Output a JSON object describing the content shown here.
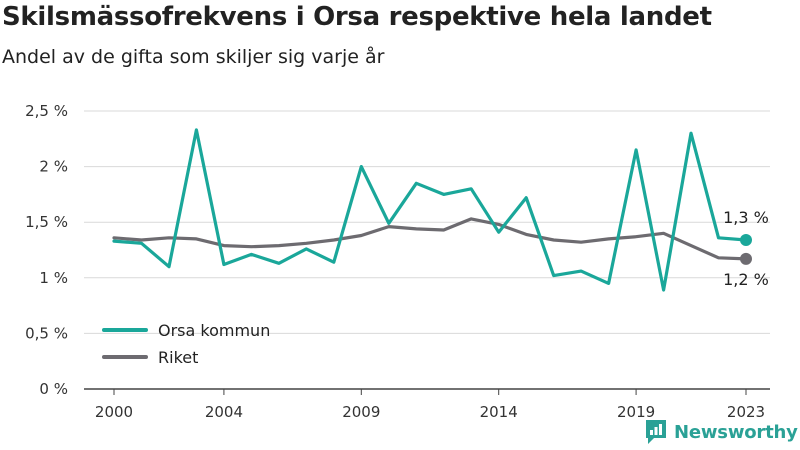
{
  "header": {
    "title": "Skilsmässofrekvens i Orsa respektive hela landet",
    "subtitle": "Andel av de gifta som skiljer sig varje år"
  },
  "colors": {
    "orsa": "#1aa79a",
    "riket": "#6d6b70",
    "grid": "#d9d9d9",
    "axis": "#444444",
    "brand": "#2aa196"
  },
  "chart_data": {
    "type": "line",
    "title": "Skilsmässofrekvens i Orsa respektive hela landet",
    "subtitle": "Andel av de gifta som skiljer sig varje år",
    "xlabel": "",
    "ylabel": "",
    "x": [
      2000,
      2001,
      2002,
      2003,
      2004,
      2005,
      2006,
      2007,
      2008,
      2009,
      2010,
      2011,
      2012,
      2013,
      2014,
      2015,
      2016,
      2017,
      2018,
      2019,
      2020,
      2021,
      2022,
      2023
    ],
    "x_ticks": [
      "2000",
      "2004",
      "2009",
      "2014",
      "2019",
      "2023"
    ],
    "y_ticks": [
      "0 %",
      "0,5 %",
      "1 %",
      "1,5 %",
      "2 %",
      "2,5 %"
    ],
    "ylim": [
      0,
      2.5
    ],
    "grid": true,
    "legend_position": "bottom-left",
    "series": [
      {
        "name": "Orsa kommun",
        "values": [
          1.33,
          1.31,
          1.1,
          2.33,
          1.12,
          1.21,
          1.13,
          1.26,
          1.14,
          2.0,
          1.49,
          1.85,
          1.75,
          1.8,
          1.41,
          1.72,
          1.02,
          1.06,
          0.95,
          2.15,
          0.89,
          2.3,
          1.36,
          1.34
        ],
        "end_label": "1,3 %"
      },
      {
        "name": "Riket",
        "values": [
          1.36,
          1.34,
          1.36,
          1.35,
          1.29,
          1.28,
          1.29,
          1.31,
          1.34,
          1.38,
          1.46,
          1.44,
          1.43,
          1.53,
          1.48,
          1.39,
          1.34,
          1.32,
          1.35,
          1.37,
          1.4,
          1.29,
          1.18,
          1.17
        ],
        "end_label": "1,2 %"
      }
    ]
  },
  "logo": {
    "text": "Newsworthy"
  }
}
